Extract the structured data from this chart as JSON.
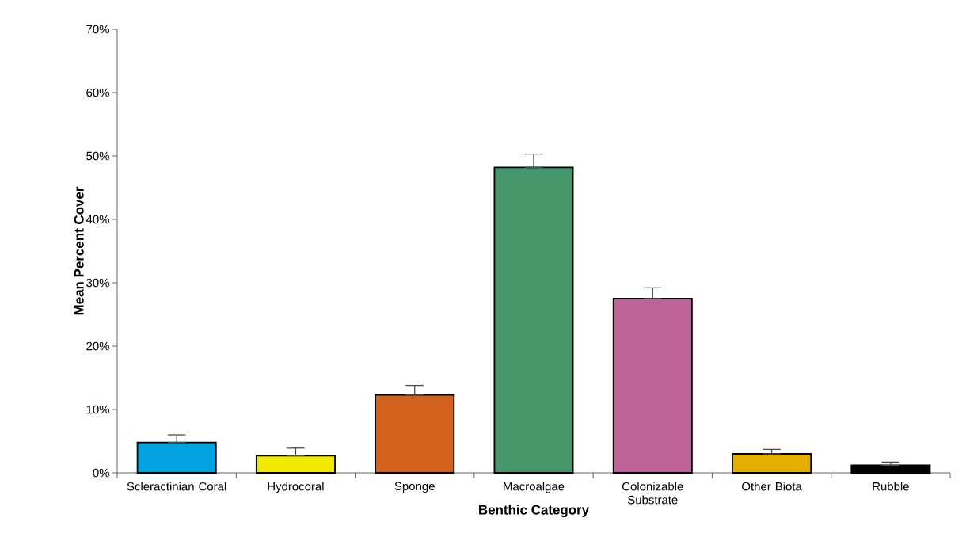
{
  "chart_data": {
    "type": "bar",
    "xlabel": "Benthic Category",
    "ylabel": "Mean Percent Cover",
    "categories": [
      "Scleractinian Coral",
      "Hydrocoral",
      "Sponge",
      "Macroalgae",
      "Colonizable Substrate",
      "Other Biota",
      "Rubble"
    ],
    "values": [
      4.8,
      2.7,
      12.3,
      48.2,
      27.5,
      3.0,
      1.2
    ],
    "errors": [
      [
        4.8,
        6.0
      ],
      [
        2.7,
        3.9
      ],
      [
        12.3,
        13.8
      ],
      [
        48.2,
        50.3
      ],
      [
        27.5,
        29.2
      ],
      [
        3.0,
        3.7
      ],
      [
        1.2,
        1.7
      ]
    ],
    "colors": [
      "#00a2e0",
      "#f0e800",
      "#d2611e",
      "#45966a",
      "#bd6498",
      "#e3ae00",
      "#000000"
    ],
    "ylim": [
      0,
      70
    ],
    "yticks": [
      {
        "value": 0,
        "label": "0%"
      },
      {
        "value": 10,
        "label": "10%"
      },
      {
        "value": 20,
        "label": "20%"
      },
      {
        "value": 30,
        "label": "30%"
      },
      {
        "value": 40,
        "label": "40%"
      },
      {
        "value": 50,
        "label": "50%"
      },
      {
        "value": 60,
        "label": "60%"
      },
      {
        "value": 70,
        "label": "70%"
      }
    ],
    "grid": false
  }
}
